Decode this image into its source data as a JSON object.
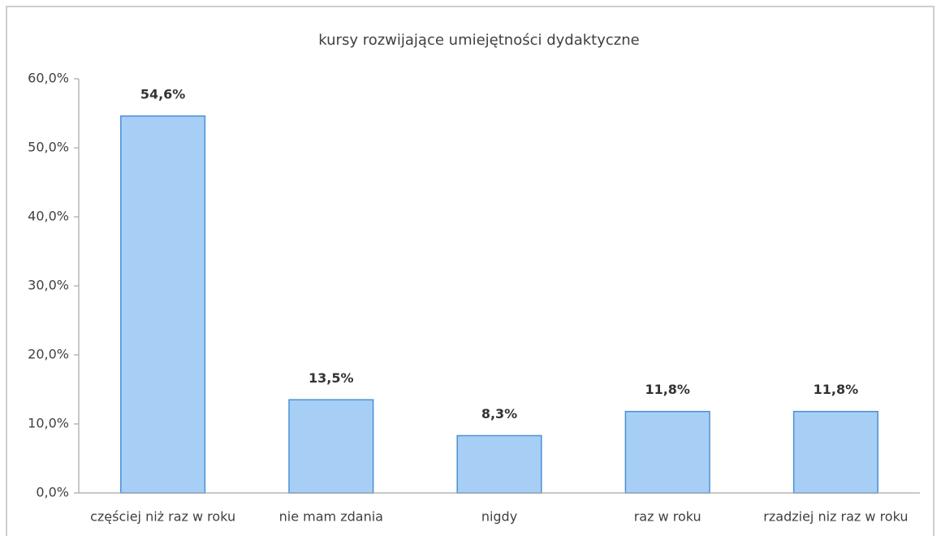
{
  "chart_data": {
    "type": "bar",
    "title": "kursy rozwijające umiejętności dydaktyczne",
    "categories": [
      "częściej niż raz w roku",
      "nie mam zdania",
      "nigdy",
      "raz w roku",
      "rzadziej niz raz w roku"
    ],
    "values": [
      54.6,
      13.5,
      8.3,
      11.8,
      11.8
    ],
    "value_labels": [
      "54,6%",
      "13,5%",
      "8,3%",
      "11,8%",
      "11,8%"
    ],
    "color": "#a7cff5",
    "ylim": [
      0,
      60
    ],
    "yticks": [
      {
        "value": 0,
        "label": "0,0%"
      },
      {
        "value": 10,
        "label": "10,0%"
      },
      {
        "value": 20,
        "label": "20,0%"
      },
      {
        "value": 30,
        "label": "30,0%"
      },
      {
        "value": 40,
        "label": "40,0%"
      },
      {
        "value": 50,
        "label": "50,0%"
      },
      {
        "value": 60,
        "label": "60,0%"
      }
    ],
    "grid": false
  }
}
